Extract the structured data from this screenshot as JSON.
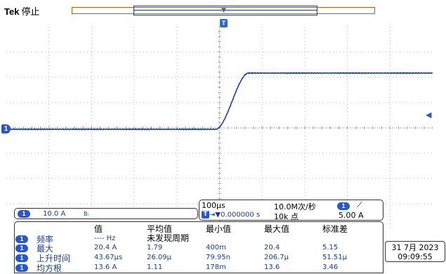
{
  "header": {
    "brand": "Tek",
    "status": "停止"
  },
  "trigger_marker": "T",
  "channel_marker": "1",
  "channel": {
    "badge": "1",
    "scale": "10.0 A",
    "bw_symbol": "Bₗ"
  },
  "horizontal": {
    "time_per_div": "100µs",
    "sample_rate": "10.0M次/秒",
    "trigger_badge": "1",
    "trigger_slope": "⟋",
    "trigger_delay_badge": "T",
    "trigger_delay": "⇥▼0.000000 s",
    "record_length": "10k 点",
    "trigger_level": "5.00 A"
  },
  "measurements": {
    "headers": [
      "值",
      "平均值",
      "最小值",
      "最大值",
      "标准差"
    ],
    "no_cycle_text": "未发现周期",
    "rows": [
      {
        "badge": "1",
        "label": "频率",
        "value": "---- Hz",
        "mean": "",
        "min": "",
        "max": "",
        "std": ""
      },
      {
        "badge": "1",
        "label": "最大",
        "value": "20.4 A",
        "mean": "1.79",
        "min": "400m",
        "max": "20.4",
        "std": "5.15"
      },
      {
        "badge": "1",
        "label": "上升时间",
        "value": "43.67µs",
        "mean": "26.09µ",
        "min": "79.95n",
        "max": "206.7µ",
        "std": "51.51µ"
      },
      {
        "badge": "1",
        "label": "均方根",
        "value": "13.6 A",
        "mean": "1.11",
        "min": "178m",
        "max": "13.6",
        "std": "3.46"
      }
    ]
  },
  "datetime": {
    "date": "31 7月 2023",
    "time": "09:09:55"
  },
  "colors": {
    "trace": "#1c3cb4",
    "accent": "#2a56c6",
    "record_bar": "#c85a10"
  }
}
